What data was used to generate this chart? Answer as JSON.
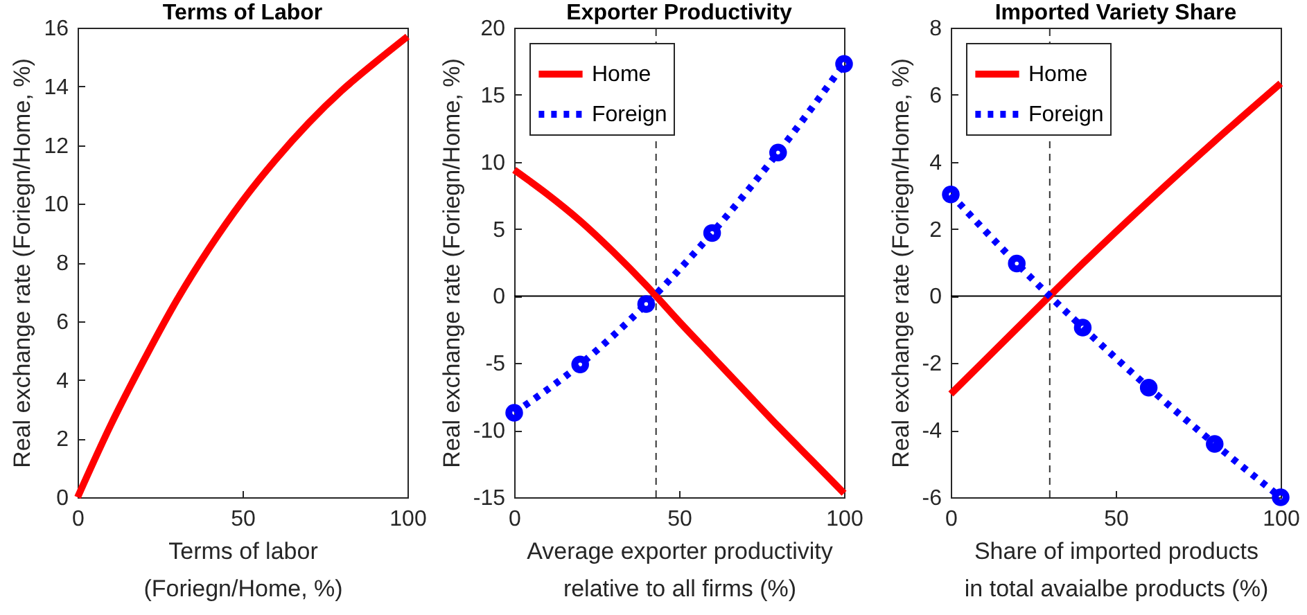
{
  "chart_data": [
    {
      "type": "line",
      "title": "Terms of Labor",
      "xlabel": "Terms of labor\n(Foriegn/Home, %)",
      "ylabel": "Real exchange rate (Foriegn/Home, %)",
      "x": [
        0,
        10,
        20,
        30,
        40,
        50,
        60,
        70,
        80,
        90,
        100
      ],
      "series": [
        {
          "color": "#ff0000",
          "values": [
            0,
            2.45,
            4.65,
            6.7,
            8.5,
            10.1,
            11.5,
            12.75,
            13.85,
            14.8,
            15.7
          ]
        }
      ],
      "xlim": [
        0,
        100
      ],
      "xticks": [
        0,
        50,
        100
      ],
      "ylim": [
        0,
        16
      ],
      "yticks": [
        0,
        2,
        4,
        6,
        8,
        10,
        12,
        14,
        16
      ],
      "line_style": "solid"
    },
    {
      "type": "line",
      "title": "Exporter Productivity",
      "xlabel": "Average exporter productivity\nrelative to all firms (%)",
      "ylabel": "Real exchange rate (Foriegn/Home, %)",
      "x": [
        0,
        10,
        20,
        30,
        40,
        50,
        60,
        70,
        80,
        90,
        100
      ],
      "series": [
        {
          "name": "Home",
          "color": "#ff0000",
          "line_style": "solid",
          "values": [
            9.4,
            7.6,
            5.6,
            3.3,
            0.8,
            -1.9,
            -4.5,
            -7.1,
            -9.7,
            -12.2,
            -14.7
          ]
        },
        {
          "name": "Foreign",
          "color": "#0000ff",
          "line_style": "dotted",
          "marker": "circle",
          "x": [
            0,
            20,
            40,
            60,
            80,
            100
          ],
          "values": [
            -8.7,
            -5.1,
            -0.6,
            4.7,
            10.7,
            17.3
          ]
        }
      ],
      "xlim": [
        0,
        100
      ],
      "xticks": [
        0,
        50,
        100
      ],
      "ylim": [
        -15,
        20
      ],
      "yticks": [
        -15,
        -10,
        -5,
        0,
        5,
        10,
        15,
        20
      ],
      "ref_lines": [
        {
          "axis": "x",
          "value": 43,
          "color": "#333333",
          "line_style": "dashed"
        },
        {
          "axis": "y",
          "value": 0,
          "color": "#000000",
          "line_style": "solid"
        }
      ],
      "legend": "top left"
    },
    {
      "type": "line",
      "title": "Imported Variety Share",
      "xlabel": "Share of imported products\nin total avaialbe products  (%)",
      "ylabel": "Real exchange rate (Foriegn/Home, %)",
      "x": [
        0,
        20,
        40,
        60,
        80,
        100
      ],
      "series": [
        {
          "name": "Home",
          "color": "#ff0000",
          "line_style": "solid",
          "values": [
            -2.92,
            -0.97,
            0.97,
            2.83,
            4.62,
            6.34
          ]
        },
        {
          "name": "Foreign",
          "color": "#0000ff",
          "line_style": "dotted",
          "marker": "circle",
          "values": [
            3.03,
            0.97,
            -0.94,
            -2.73,
            -4.41,
            -6.0
          ]
        }
      ],
      "xlim": [
        0,
        100
      ],
      "xticks": [
        0,
        50,
        100
      ],
      "ylim": [
        -6,
        8
      ],
      "yticks": [
        -6,
        -4,
        -2,
        0,
        2,
        4,
        6,
        8
      ],
      "ref_lines": [
        {
          "axis": "x",
          "value": 30,
          "color": "#333333",
          "line_style": "dashed"
        },
        {
          "axis": "y",
          "value": 0,
          "color": "#000000",
          "line_style": "solid"
        }
      ],
      "legend": "top left"
    }
  ]
}
